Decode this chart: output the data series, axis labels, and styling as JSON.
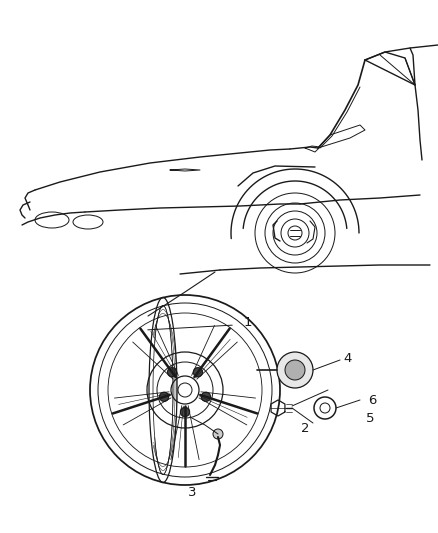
{
  "bg_color": "#ffffff",
  "line_color": "#1a1a1a",
  "lw": 0.9,
  "fig_width": 4.38,
  "fig_height": 5.33,
  "dpi": 100
}
